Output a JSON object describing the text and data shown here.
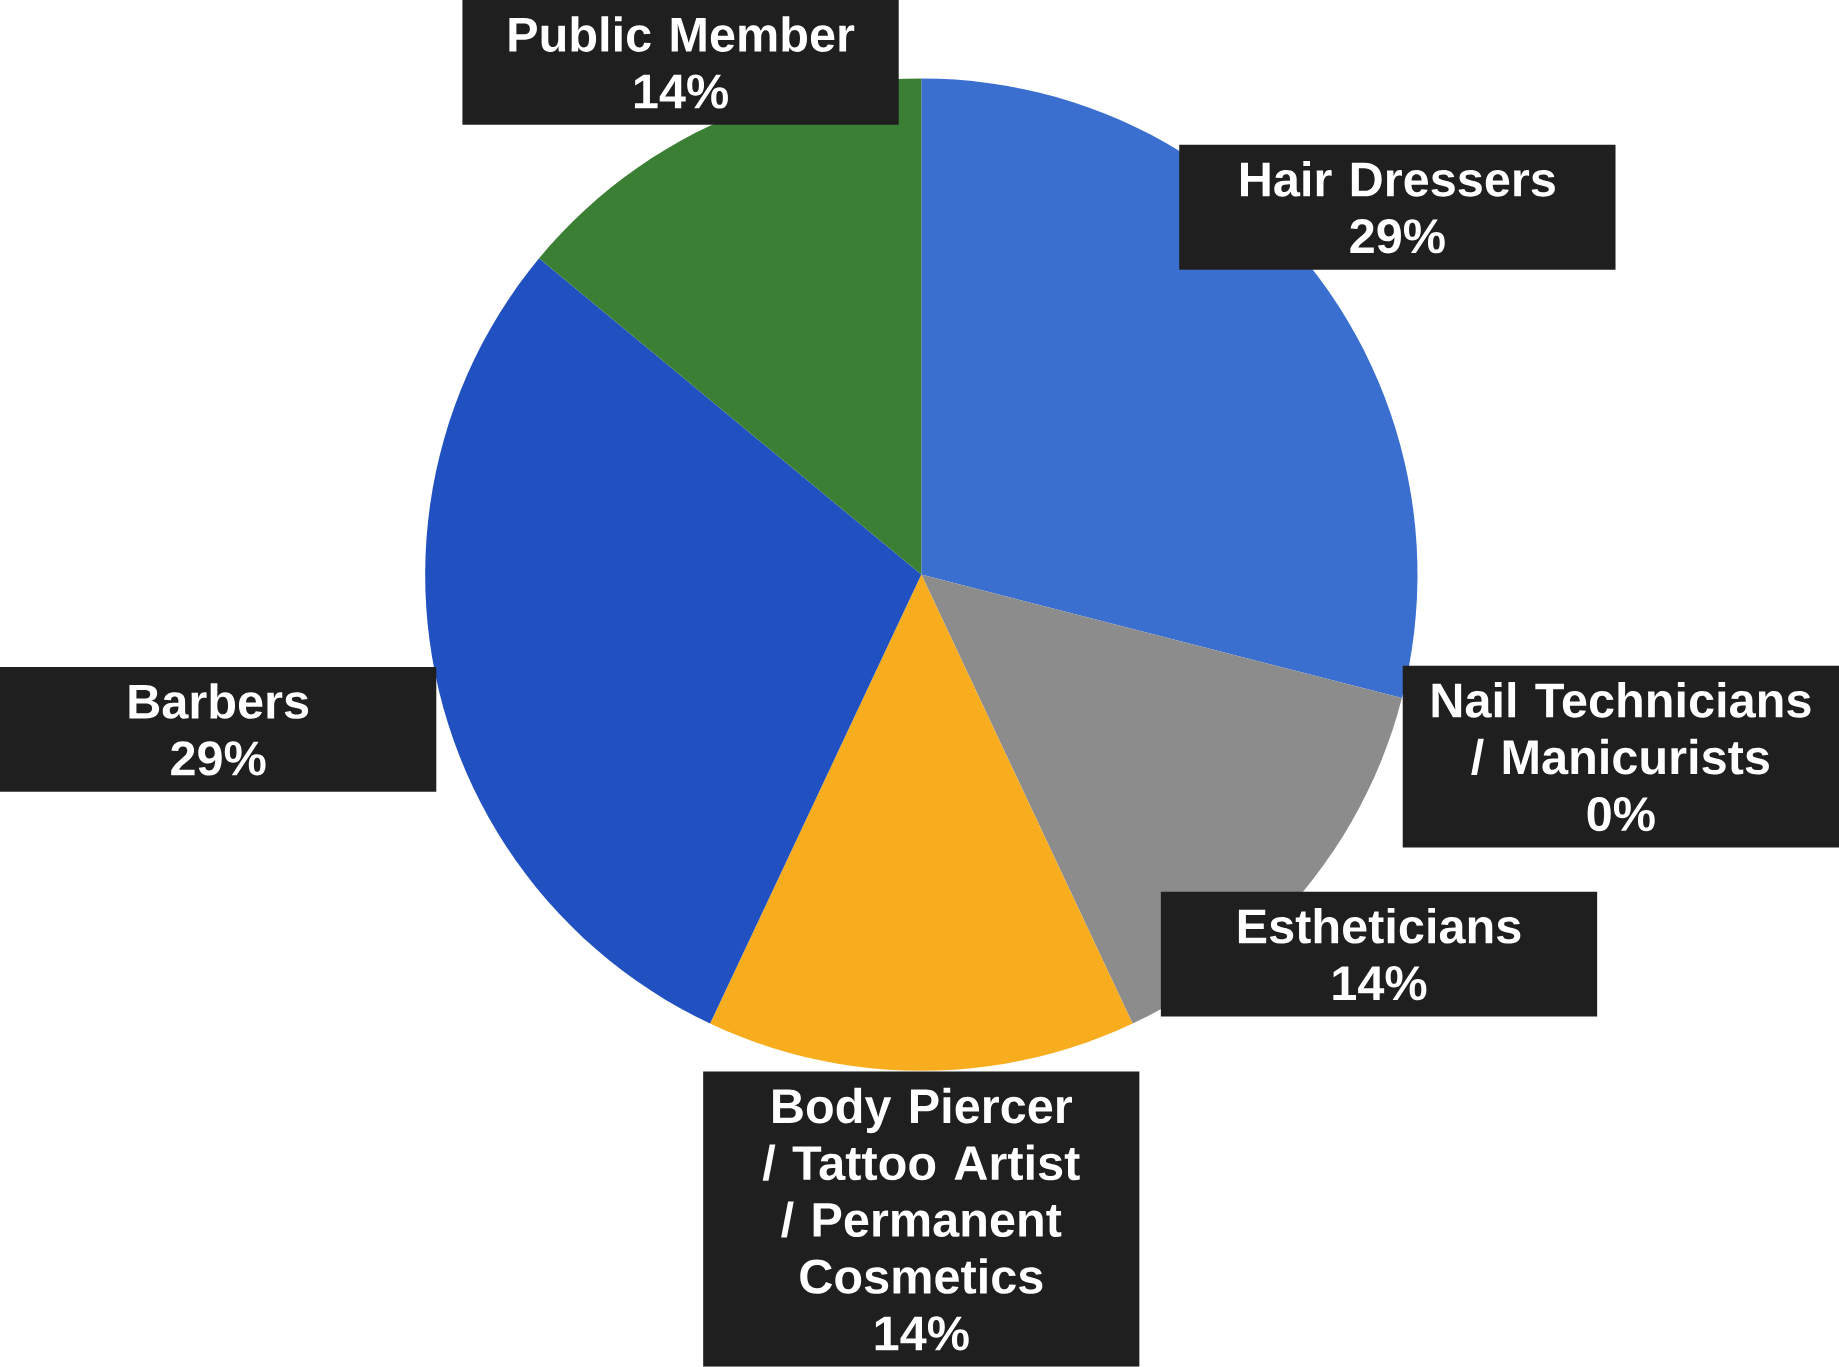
{
  "chart_data": {
    "type": "pie",
    "categories": [
      "Hair Dressers",
      "Nail Technicians / Manicurists",
      "Estheticians",
      "Body Piercer / Tattoo Artist / Permanent Cosmetics",
      "Barbers",
      "Public Member"
    ],
    "values": [
      29,
      0,
      14,
      14,
      29,
      14
    ],
    "value_labels": [
      "29%",
      "0%",
      "14%",
      "14%",
      "29%",
      "14%"
    ],
    "colors": [
      "#3a6fd0",
      "#e0a030",
      "#8c8c8c",
      "#f7ad1e",
      "#2150c0",
      "#3b7f34"
    ]
  }
}
